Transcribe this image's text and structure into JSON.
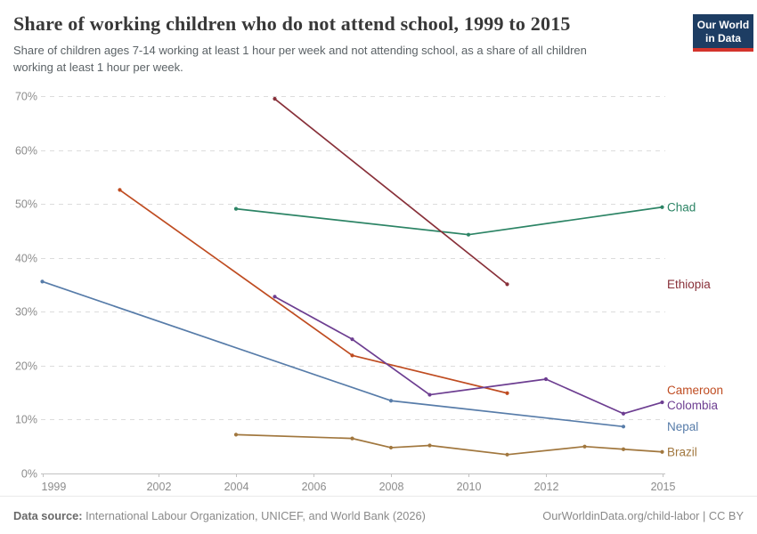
{
  "header": {
    "title": "Share of working children who do not attend school, 1999 to 2015",
    "subtitle": "Share of children ages 7-14 working at least 1 hour per week and not attending school, as a share of all children working at least 1 hour per week.",
    "logo": {
      "line1": "Our World",
      "line2": "in Data",
      "bg_color": "#1d3d63",
      "accent_color": "#d4342c"
    }
  },
  "chart_data": {
    "type": "line",
    "title": "Share of working children who do not attend school, 1999 to 2015",
    "xlabel": "",
    "ylabel": "",
    "xlim": [
      1999,
      2015
    ],
    "ylim": [
      0,
      70
    ],
    "x_ticks": [
      1999,
      2002,
      2004,
      2006,
      2008,
      2010,
      2012,
      2015
    ],
    "y_ticks": [
      0,
      10,
      20,
      30,
      40,
      50,
      60,
      70
    ],
    "y_tick_suffix": "%",
    "grid": "horizontal-dashed",
    "legend_position": "right-edge-inline-labels",
    "colors": {
      "grid": "#dcdcdc",
      "axis": "#c2c2c2",
      "tick_label": "#8c8c8c"
    },
    "series": [
      {
        "name": "Chad",
        "color": "#2c8465",
        "x": [
          2004,
          2010,
          2015
        ],
        "values": [
          49.1,
          44.3,
          49.4
        ]
      },
      {
        "name": "Ethiopia",
        "color": "#883039",
        "x": [
          2005,
          2011
        ],
        "values": [
          69.5,
          35.1
        ]
      },
      {
        "name": "Cameroon",
        "color": "#bf4c21",
        "x": [
          2001,
          2007,
          2011
        ],
        "values": [
          52.6,
          21.9,
          14.9
        ]
      },
      {
        "name": "Colombia",
        "color": "#6d3e91",
        "x": [
          2005,
          2007,
          2009,
          2012,
          2014,
          2015
        ],
        "values": [
          32.8,
          24.9,
          14.6,
          17.5,
          11.1,
          13.2
        ]
      },
      {
        "name": "Nepal",
        "color": "#577ca9",
        "x": [
          1999,
          2008,
          2014
        ],
        "values": [
          35.6,
          13.5,
          8.7
        ]
      },
      {
        "name": "Brazil",
        "color": "#a1773e",
        "x": [
          2004,
          2007,
          2008,
          2009,
          2011,
          2013,
          2014,
          2015
        ],
        "values": [
          7.2,
          6.5,
          4.8,
          5.2,
          3.5,
          5.0,
          4.5,
          4.0
        ]
      }
    ]
  },
  "footer": {
    "source_prefix": "Data source:",
    "source": "International Labour Organization, UNICEF, and World Bank (2026)",
    "license": "OurWorldinData.org/child-labor | CC BY"
  }
}
